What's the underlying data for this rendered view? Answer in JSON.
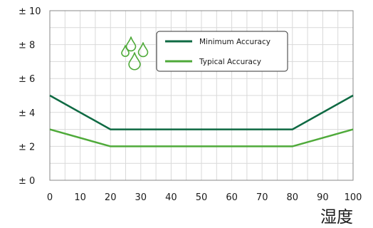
{
  "chart_data": {
    "type": "line",
    "title": "",
    "xlabel": "湿度",
    "ylabel": "",
    "xlim": [
      0,
      100
    ],
    "ylim": [
      0,
      10
    ],
    "x_ticks": [
      0,
      10,
      20,
      30,
      40,
      50,
      60,
      70,
      80,
      90,
      100
    ],
    "x_tick_labels": [
      "0",
      "10",
      "20",
      "30",
      "40",
      "50",
      "60",
      "70",
      "80",
      "90",
      "100"
    ],
    "y_ticks": [
      0,
      2,
      4,
      6,
      8,
      10
    ],
    "y_tick_labels": [
      "± 0",
      "± 2",
      "± 4",
      "± 6",
      "± 8",
      "± 10"
    ],
    "grid": true,
    "legend_position": "top-right",
    "icon": "water-drops-icon",
    "series": [
      {
        "name": "Minimum Accuracy",
        "color": "#0f6a43",
        "x": [
          0,
          20,
          80,
          100
        ],
        "y": [
          5,
          3,
          3,
          5
        ]
      },
      {
        "name": "Typical Accuracy",
        "color": "#4faa3a",
        "x": [
          0,
          20,
          80,
          100
        ],
        "y": [
          3,
          2,
          2,
          3
        ]
      }
    ]
  }
}
